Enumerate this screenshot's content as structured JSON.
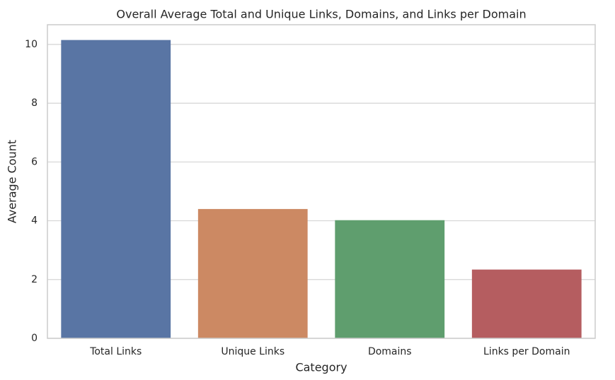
{
  "chart_data": {
    "type": "bar",
    "title": "Overall Average Total and Unique Links, Domains, and Links per Domain",
    "x_label": "Category",
    "y_label": "Average Count",
    "categories": [
      "Total Links",
      "Unique Links",
      "Domains",
      "Links per Domain"
    ],
    "values": [
      10.15,
      4.4,
      4.02,
      2.34
    ],
    "colors": [
      "#5975a4",
      "#cc8963",
      "#5f9e6e",
      "#b55d60"
    ],
    "ylim": [
      0,
      10.67
    ],
    "yticks": [
      0,
      2,
      4,
      6,
      8,
      10
    ],
    "grid": true
  }
}
